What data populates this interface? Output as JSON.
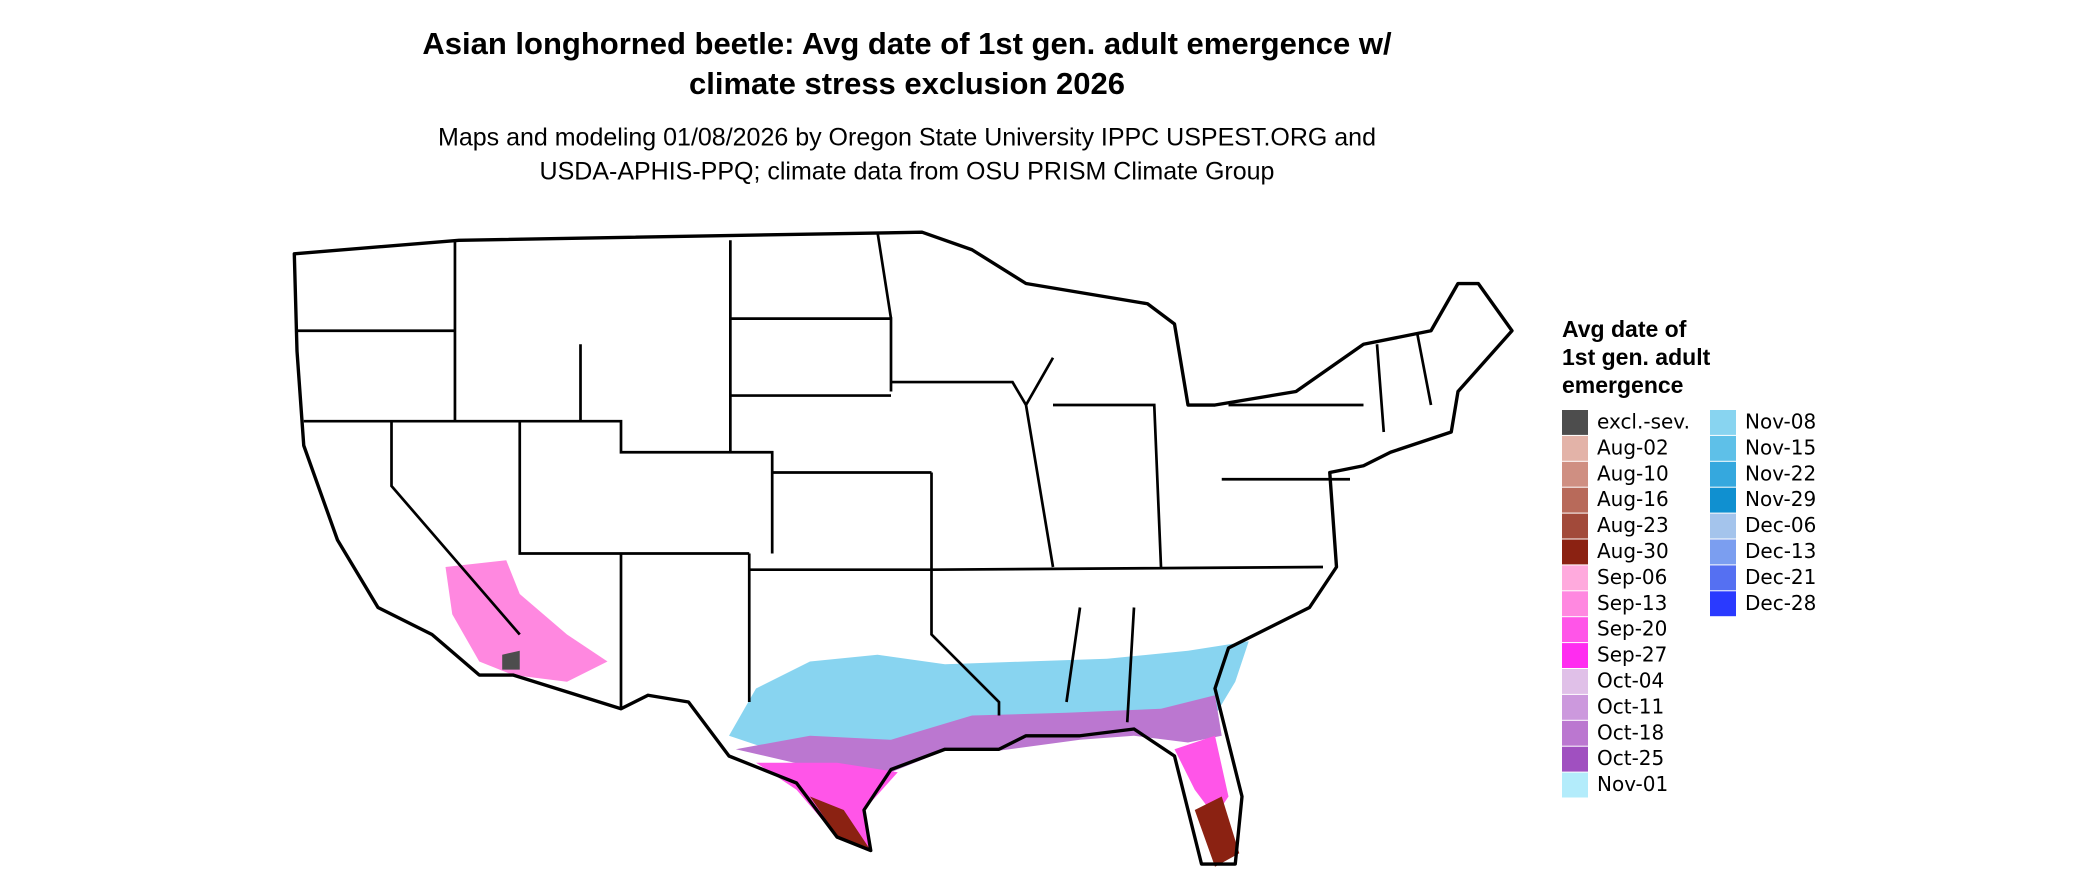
{
  "title": [
    "Asian longhorned beetle: Avg date of 1st gen. adult emergence w/",
    "climate stress exclusion 2026"
  ],
  "subtitle": [
    "Maps and modeling 01/08/2026 by Oregon State University IPPC USPEST.ORG and",
    "USDA-APHIS-PPQ; climate data from OSU PRISM Climate Group"
  ],
  "legend": {
    "title": [
      "Avg date of",
      "1st gen. adult",
      "emergence"
    ],
    "items": [
      {
        "label": "excl.-sev.",
        "color": "#4d4d4d"
      },
      {
        "label": "Aug-02",
        "color": "#e3b3a8"
      },
      {
        "label": "Aug-10",
        "color": "#cf8f82"
      },
      {
        "label": "Aug-16",
        "color": "#b86a5a"
      },
      {
        "label": "Aug-23",
        "color": "#a24a3a"
      },
      {
        "label": "Aug-30",
        "color": "#8b2212"
      },
      {
        "label": "Sep-06",
        "color": "#ffaadd"
      },
      {
        "label": "Sep-13",
        "color": "#ff88e0"
      },
      {
        "label": "Sep-20",
        "color": "#ff55e8"
      },
      {
        "label": "Sep-27",
        "color": "#ff2cf0"
      },
      {
        "label": "Oct-04",
        "color": "#e0c0e8"
      },
      {
        "label": "Oct-11",
        "color": "#cc99dd"
      },
      {
        "label": "Oct-18",
        "color": "#bb77d0"
      },
      {
        "label": "Oct-25",
        "color": "#a050c0"
      },
      {
        "label": "Nov-01",
        "color": "#b3ecfb"
      },
      {
        "label": "Nov-08",
        "color": "#88d4f0"
      },
      {
        "label": "Nov-15",
        "color": "#5ec0e8"
      },
      {
        "label": "Nov-22",
        "color": "#35a8de"
      },
      {
        "label": "Nov-29",
        "color": "#1090d0"
      },
      {
        "label": "Dec-06",
        "color": "#a4c4ec"
      },
      {
        "label": "Dec-13",
        "color": "#7b9ef0"
      },
      {
        "label": "Dec-21",
        "color": "#5570f2"
      },
      {
        "label": "Dec-28",
        "color": "#2a3aff"
      }
    ]
  }
}
